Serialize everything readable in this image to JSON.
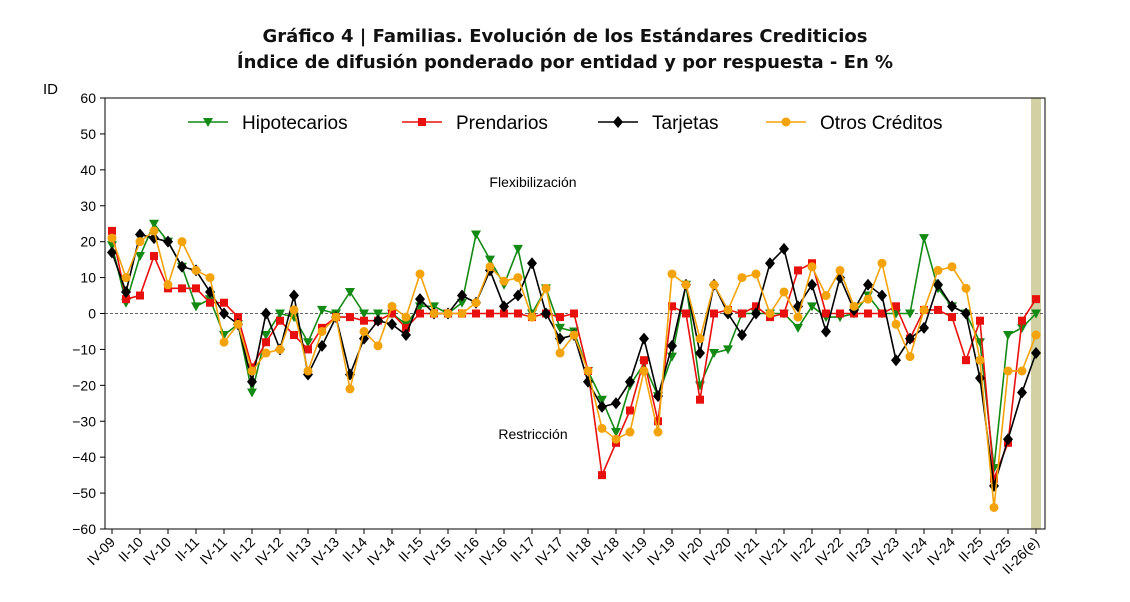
{
  "chart_data": {
    "type": "line",
    "title_lines": [
      "Gráfico 4 | Familias. Evolución de los Estándares Crediticios",
      "Índice de difusión ponderado por entidad y por respuesta - En %"
    ],
    "ylabel": "ID",
    "xlabel": "",
    "ylim": [
      -60,
      60
    ],
    "yticks": [
      -60,
      -50,
      -40,
      -30,
      -20,
      -10,
      0,
      10,
      20,
      30,
      40,
      50,
      60
    ],
    "xtick_labels": [
      "IV-09",
      "II-10",
      "IV-10",
      "II-11",
      "IV-11",
      "II-12",
      "IV-12",
      "II-13",
      "IV-13",
      "II-14",
      "IV-14",
      "II-15",
      "IV-15",
      "II-16",
      "IV-16",
      "II-17",
      "IV-17",
      "II-18",
      "IV-18",
      "II-19",
      "IV-19",
      "II-20",
      "IV-20",
      "II-21",
      "IV-21",
      "II-22",
      "IV-22",
      "II-23",
      "IV-23",
      "II-24",
      "IV-24",
      "II-25",
      "IV-25",
      "II-26(e)"
    ],
    "x_range": [
      "IV-09",
      "II-26(e)"
    ],
    "frequency": "quarterly",
    "legend_position": "top",
    "grid": false,
    "zero_line": "dashed",
    "highlight_last_period": "II-26(e)",
    "highlight_color": "#d3d0a4",
    "annotations": [
      "Flexibilización",
      "Restricción"
    ],
    "series": [
      {
        "name": "Hipotecarios",
        "color": "#138a13",
        "marker": "triangle-down",
        "values": [
          19,
          3,
          16,
          25,
          20,
          13,
          2,
          4,
          -6,
          -3,
          -22,
          -6,
          0,
          -1,
          -8,
          1,
          0,
          6,
          0,
          0,
          0,
          -3,
          2,
          2,
          0,
          3,
          22,
          15,
          8,
          18,
          0,
          7,
          -4,
          -5,
          -16,
          -24,
          -33,
          -20,
          -14,
          -23,
          -12,
          8,
          -20,
          -11,
          -10,
          0,
          0,
          0,
          0,
          -4,
          2,
          -1,
          -1,
          0,
          5,
          0,
          0,
          0,
          21,
          7,
          2,
          0,
          -8,
          -43,
          -6,
          -4,
          0
        ]
      },
      {
        "name": "Prendarios",
        "color": "#e8100c",
        "marker": "square",
        "values": [
          23,
          4,
          5,
          16,
          7,
          7,
          7,
          3,
          3,
          -1,
          -15,
          -8,
          -2,
          -6,
          -10,
          -4,
          -1,
          -1,
          -2,
          -2,
          0,
          -4,
          0,
          0,
          0,
          0,
          0,
          0,
          0,
          0,
          -1,
          0,
          -1,
          0,
          -16,
          -45,
          -36,
          -27,
          -13,
          -30,
          2,
          0,
          -24,
          0,
          1,
          0,
          2,
          -1,
          0,
          12,
          14,
          0,
          0,
          0,
          0,
          0,
          2,
          -7,
          1,
          1,
          -1,
          -13,
          -2,
          -46,
          -36,
          -2,
          4
        ]
      },
      {
        "name": "Tarjetas",
        "color": "#000000",
        "marker": "diamond",
        "values": [
          17,
          6,
          22,
          21,
          20,
          13,
          12,
          6,
          0,
          -3,
          -19,
          0,
          -10,
          5,
          -17,
          -9,
          -1,
          -17,
          -7,
          -2,
          -3,
          -6,
          4,
          0,
          0,
          5,
          3,
          12,
          2,
          5,
          14,
          0,
          -7,
          -6,
          -19,
          -26,
          -25,
          -19,
          -7,
          -23,
          -9,
          8,
          -11,
          8,
          0,
          -6,
          0,
          14,
          18,
          2,
          8,
          -5,
          10,
          1,
          8,
          5,
          -13,
          -7,
          -4,
          8,
          2,
          0,
          -18,
          -48,
          -35,
          -22,
          -11
        ]
      },
      {
        "name": "Otros Créditos",
        "color": "#f5a30a",
        "marker": "circle",
        "values": [
          21,
          10,
          20,
          23,
          8,
          20,
          12,
          10,
          -8,
          -3,
          -16,
          -11,
          -10,
          1,
          -16,
          -5,
          -1,
          -21,
          -5,
          -9,
          2,
          -1,
          11,
          0,
          0,
          0,
          3,
          13,
          9,
          10,
          -1,
          7,
          -11,
          -6,
          -16,
          -32,
          -35,
          -33,
          -16,
          -33,
          11,
          8,
          -7,
          8,
          1,
          10,
          11,
          0,
          6,
          -1,
          13,
          5,
          12,
          2,
          4,
          14,
          -3,
          -12,
          1,
          12,
          13,
          7,
          -13,
          -54,
          -16,
          -16,
          -6
        ]
      }
    ]
  }
}
